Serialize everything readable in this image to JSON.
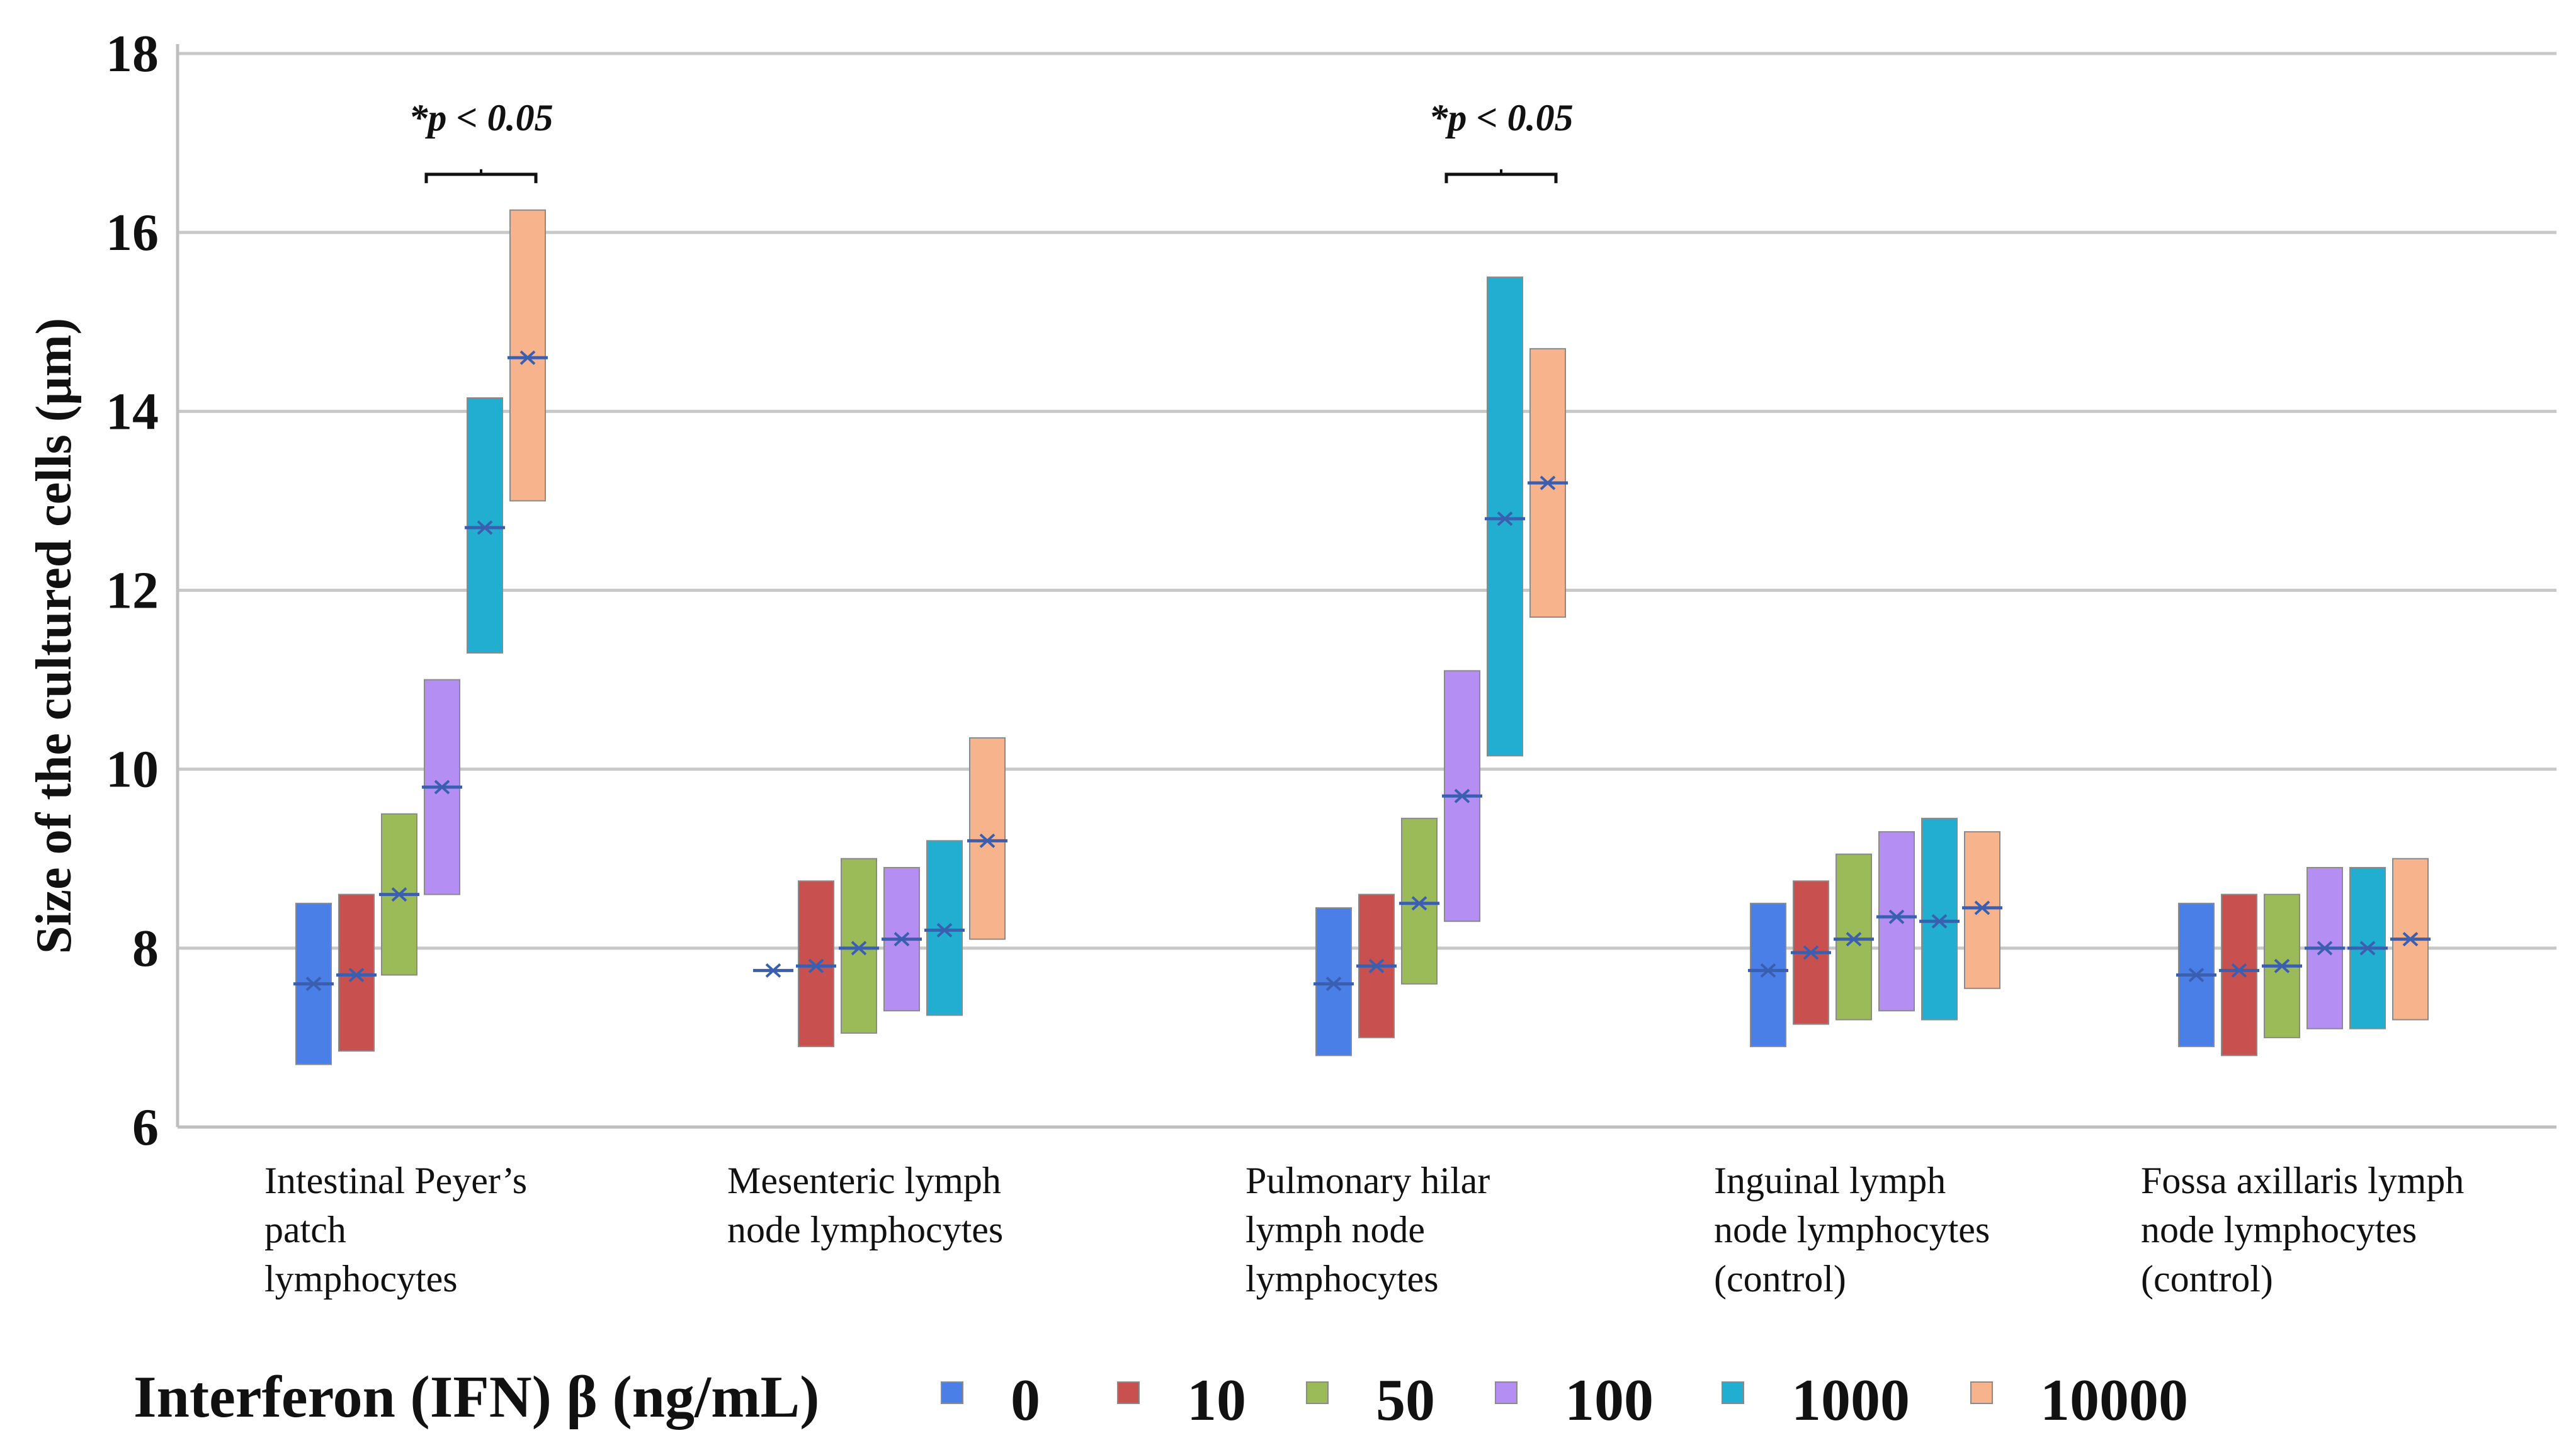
{
  "chart_data": {
    "type": "floating-bar",
    "ylabel": "Size of the cultured cells (μm)",
    "ylim": [
      6,
      18
    ],
    "yticks": [
      6,
      8,
      10,
      12,
      14,
      16,
      18
    ],
    "grid": true,
    "categories": [
      [
        "Intestinal Peyer’s",
        "patch",
        "lymphocytes"
      ],
      [
        "Mesenteric lymph",
        "node lymphocytes"
      ],
      [
        "Pulmonary hilar",
        "lymph node",
        "lymphocytes"
      ],
      [
        "Inguinal lymph",
        "node lymphocytes",
        "(control)"
      ],
      [
        "Fossa axillaris  lymph",
        "node lymphocytes",
        "(control)"
      ]
    ],
    "legend_title": "Interferon (IFN) β (ng/mL)",
    "series": [
      {
        "name": "0",
        "color": "#4a7fe8",
        "low": [
          6.7,
          null,
          6.8,
          6.9,
          6.9
        ],
        "high": [
          8.5,
          null,
          8.45,
          8.5,
          8.5
        ],
        "mean": [
          7.6,
          7.75,
          7.6,
          7.75,
          7.7
        ]
      },
      {
        "name": "10",
        "color": "#c8504f",
        "low": [
          6.85,
          6.9,
          7.0,
          7.15,
          6.8
        ],
        "high": [
          8.6,
          8.75,
          8.6,
          8.75,
          8.6
        ],
        "mean": [
          7.7,
          7.8,
          7.8,
          7.95,
          7.75
        ]
      },
      {
        "name": "50",
        "color": "#9bbb59",
        "low": [
          7.7,
          7.05,
          7.6,
          7.2,
          7.0
        ],
        "high": [
          9.5,
          9.0,
          9.45,
          9.05,
          8.6
        ],
        "mean": [
          8.6,
          8.0,
          8.5,
          8.1,
          7.8
        ]
      },
      {
        "name": "100",
        "color": "#b48ef3",
        "low": [
          8.6,
          7.3,
          8.3,
          7.3,
          7.1
        ],
        "high": [
          11.0,
          8.9,
          11.1,
          9.3,
          8.9
        ],
        "mean": [
          9.8,
          8.1,
          9.7,
          8.35,
          8.0
        ]
      },
      {
        "name": "1000",
        "color": "#21aed0",
        "low": [
          11.3,
          7.25,
          10.15,
          7.2,
          7.1
        ],
        "high": [
          14.15,
          9.2,
          15.5,
          9.45,
          8.9
        ],
        "mean": [
          12.7,
          8.2,
          12.8,
          8.3,
          8.0
        ]
      },
      {
        "name": "10000",
        "color": "#f7b38c",
        "low": [
          13.0,
          8.1,
          11.7,
          7.55,
          7.2
        ],
        "high": [
          16.25,
          10.35,
          14.7,
          9.3,
          9.0
        ],
        "mean": [
          14.6,
          9.2,
          13.2,
          8.45,
          8.1
        ]
      }
    ],
    "annotations": [
      {
        "text": "*p < 0.05",
        "category_index": 0,
        "from_series": 4,
        "to_series": 5,
        "y": 16.65
      },
      {
        "text": "*p < 0.05",
        "category_index": 2,
        "from_series": 4,
        "to_series": 5,
        "y": 16.65
      }
    ]
  }
}
